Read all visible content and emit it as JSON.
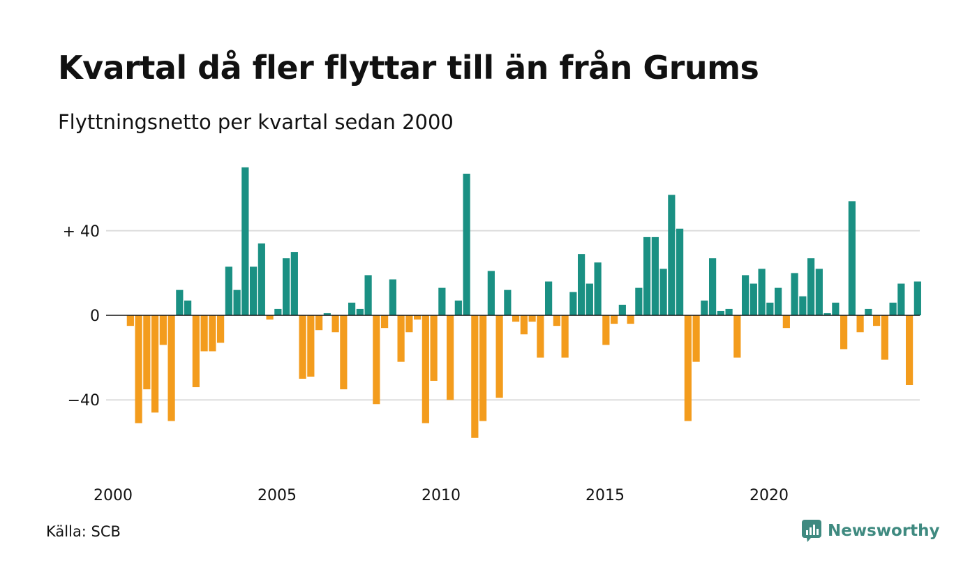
{
  "title": "Kvartal då fler flyttar till än från Grums",
  "subtitle": "Flyttningsnetto per kvartal sedan 2000",
  "source": "Källa: SCB",
  "brand": {
    "name": "Newsworthy",
    "icon": "newsworthy-logo-icon"
  },
  "colors": {
    "positive": "#1a9083",
    "negative": "#f39c1d",
    "grid": "#dddddd",
    "axis": "#111111",
    "brand": "#3f8a80"
  },
  "chart_data": {
    "type": "bar",
    "grid": true,
    "ylim": [
      -65,
      70
    ],
    "y_ticks": [
      40,
      0,
      -40
    ],
    "y_tick_labels": [
      "+ 40",
      "0",
      "−40"
    ],
    "x_tick_labels": [
      "2000",
      "2005",
      "2010",
      "2015",
      "2020"
    ],
    "x_tick_years": [
      2000,
      2005,
      2010,
      2015,
      2020
    ],
    "start": "2000-Q1",
    "values": [
      0,
      -5,
      -51,
      -35,
      -46,
      -14,
      -50,
      12,
      7,
      -34,
      -17,
      -17,
      -13,
      23,
      12,
      70,
      23,
      34,
      -2,
      3,
      27,
      30,
      -30,
      -29,
      -7,
      1,
      -8,
      -35,
      6,
      3,
      19,
      -42,
      -6,
      17,
      -22,
      -8,
      -2,
      -51,
      -31,
      13,
      -40,
      7,
      67,
      -58,
      -50,
      21,
      -39,
      12,
      -3,
      -9,
      -3,
      -20,
      16,
      -5,
      -20,
      11,
      29,
      15,
      25,
      -14,
      -4,
      5,
      -4,
      13,
      37,
      37,
      22,
      57,
      41,
      -50,
      -22,
      7,
      27,
      2,
      3,
      -20,
      19,
      15,
      22,
      6,
      13,
      -6,
      20,
      9,
      27,
      22,
      1,
      6,
      -16,
      54,
      -8,
      3,
      -5,
      -21,
      6,
      15,
      -33,
      16
    ]
  }
}
